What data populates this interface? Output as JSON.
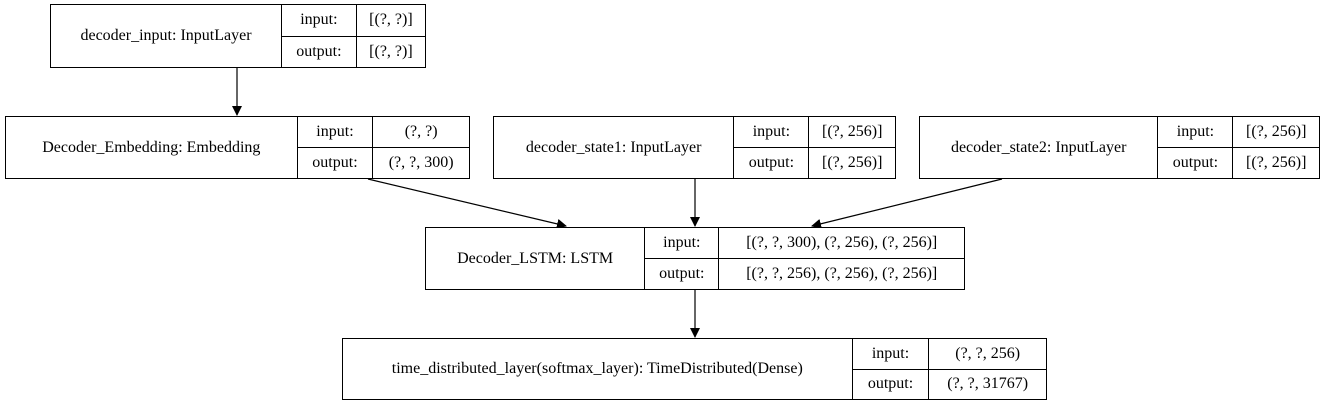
{
  "nodes": [
    {
      "id": "decoder-input",
      "name": "decoder_input: InputLayer",
      "input_label": "input:",
      "input_shape": "[(?, ?)]",
      "output_label": "output:",
      "output_shape": "[(?, ?)]"
    },
    {
      "id": "embedding",
      "name": "Decoder_Embedding: Embedding",
      "input_label": "input:",
      "input_shape": "(?, ?)",
      "output_label": "output:",
      "output_shape": "(?, ?, 300)"
    },
    {
      "id": "state1",
      "name": "decoder_state1: InputLayer",
      "input_label": "input:",
      "input_shape": "[(?, 256)]",
      "output_label": "output:",
      "output_shape": "[(?, 256)]"
    },
    {
      "id": "state2",
      "name": "decoder_state2: InputLayer",
      "input_label": "input:",
      "input_shape": "[(?, 256)]",
      "output_label": "output:",
      "output_shape": "[(?, 256)]"
    },
    {
      "id": "lstm",
      "name": "Decoder_LSTM: LSTM",
      "input_label": "input:",
      "input_shape": "[(?, ?, 300), (?, 256), (?, 256)]",
      "output_label": "output:",
      "output_shape": "[(?, ?, 256), (?, 256), (?, 256)]"
    },
    {
      "id": "dense",
      "name": "time_distributed_layer(softmax_layer): TimeDistributed(Dense)",
      "input_label": "input:",
      "input_shape": "(?, ?, 256)",
      "output_label": "output:",
      "output_shape": "(?, ?, 31767)"
    }
  ],
  "edges": [
    {
      "from": "decoder-input",
      "to": "embedding"
    },
    {
      "from": "embedding",
      "to": "lstm"
    },
    {
      "from": "state1",
      "to": "lstm"
    },
    {
      "from": "state2",
      "to": "lstm"
    },
    {
      "from": "lstm",
      "to": "dense"
    }
  ]
}
